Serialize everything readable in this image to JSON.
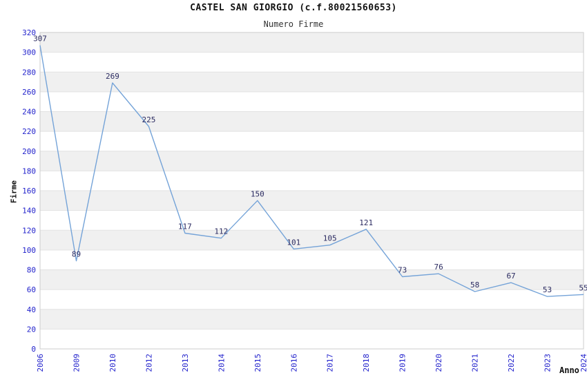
{
  "chart_data": {
    "type": "line",
    "title": "CASTEL SAN GIORGIO (c.f.80021560653)",
    "subtitle": "Numero Firme",
    "categories": [
      "2006",
      "2009",
      "2010",
      "2012",
      "2013",
      "2014",
      "2015",
      "2016",
      "2017",
      "2018",
      "2019",
      "2020",
      "2021",
      "2022",
      "2023",
      "2024"
    ],
    "values": [
      307,
      89,
      269,
      225,
      117,
      112,
      150,
      101,
      105,
      121,
      73,
      76,
      58,
      67,
      53,
      55
    ],
    "xlabel": "Anno",
    "ylabel": "Firme",
    "ylim": [
      0,
      320
    ],
    "ytick_step": 20,
    "grid": "horizontal-bands-alternating",
    "legend": "none",
    "colors": {
      "line": "#74a3d8",
      "tick_labels": "#2222cc",
      "value_labels": "#2a2a60",
      "band": "#f0f0f0",
      "grid_line": "#e2e2e2",
      "border": "#cccccc",
      "title": "#111111",
      "subtitle": "#333333",
      "axis_title": "#111111"
    }
  }
}
